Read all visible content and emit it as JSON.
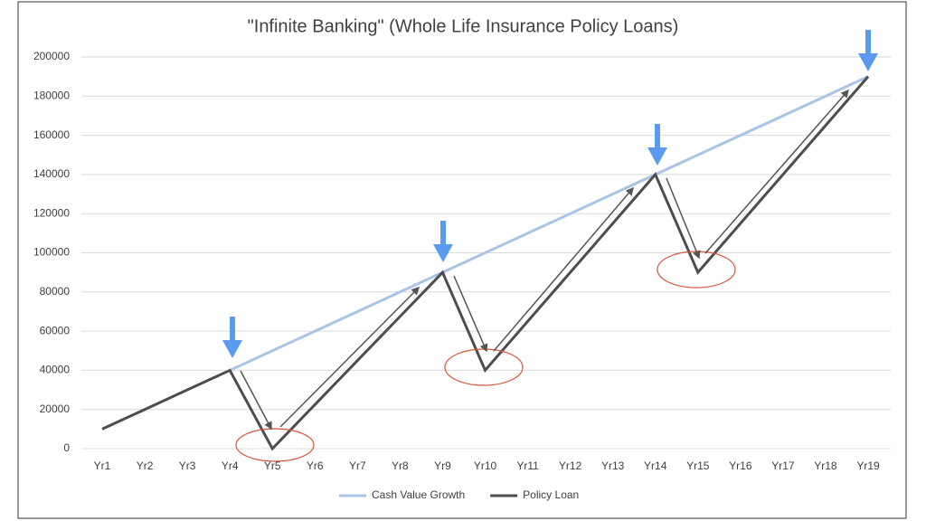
{
  "chart_data": {
    "type": "line",
    "title": "\"Infinite Banking\" (Whole Life Insurance Policy Loans)",
    "categories": [
      "Yr1",
      "Yr2",
      "Yr3",
      "Yr4",
      "Yr5",
      "Yr6",
      "Yr7",
      "Yr8",
      "Yr9",
      "Yr10",
      "Yr11",
      "Yr12",
      "Yr13",
      "Yr14",
      "Yr15",
      "Yr16",
      "Yr17",
      "Yr18",
      "Yr19"
    ],
    "series": [
      {
        "name": "Cash Value Growth",
        "color": "#a9c4e6",
        "values": [
          null,
          null,
          null,
          40000,
          50000,
          60000,
          70000,
          80000,
          90000,
          100000,
          110000,
          120000,
          130000,
          140000,
          150000,
          160000,
          170000,
          180000,
          190000
        ]
      },
      {
        "name": "Policy Loan",
        "color": "#4d4d4d",
        "values": [
          10000,
          20000,
          30000,
          40000,
          0,
          22500,
          45000,
          67500,
          90000,
          40000,
          65000,
          90000,
          115000,
          140000,
          90000,
          115000,
          140000,
          165000,
          190000
        ]
      }
    ],
    "ylim": [
      0,
      200000
    ],
    "yticks": [
      0,
      20000,
      40000,
      60000,
      80000,
      100000,
      120000,
      140000,
      160000,
      180000,
      200000
    ],
    "grid": true,
    "legend": "bottom"
  }
}
